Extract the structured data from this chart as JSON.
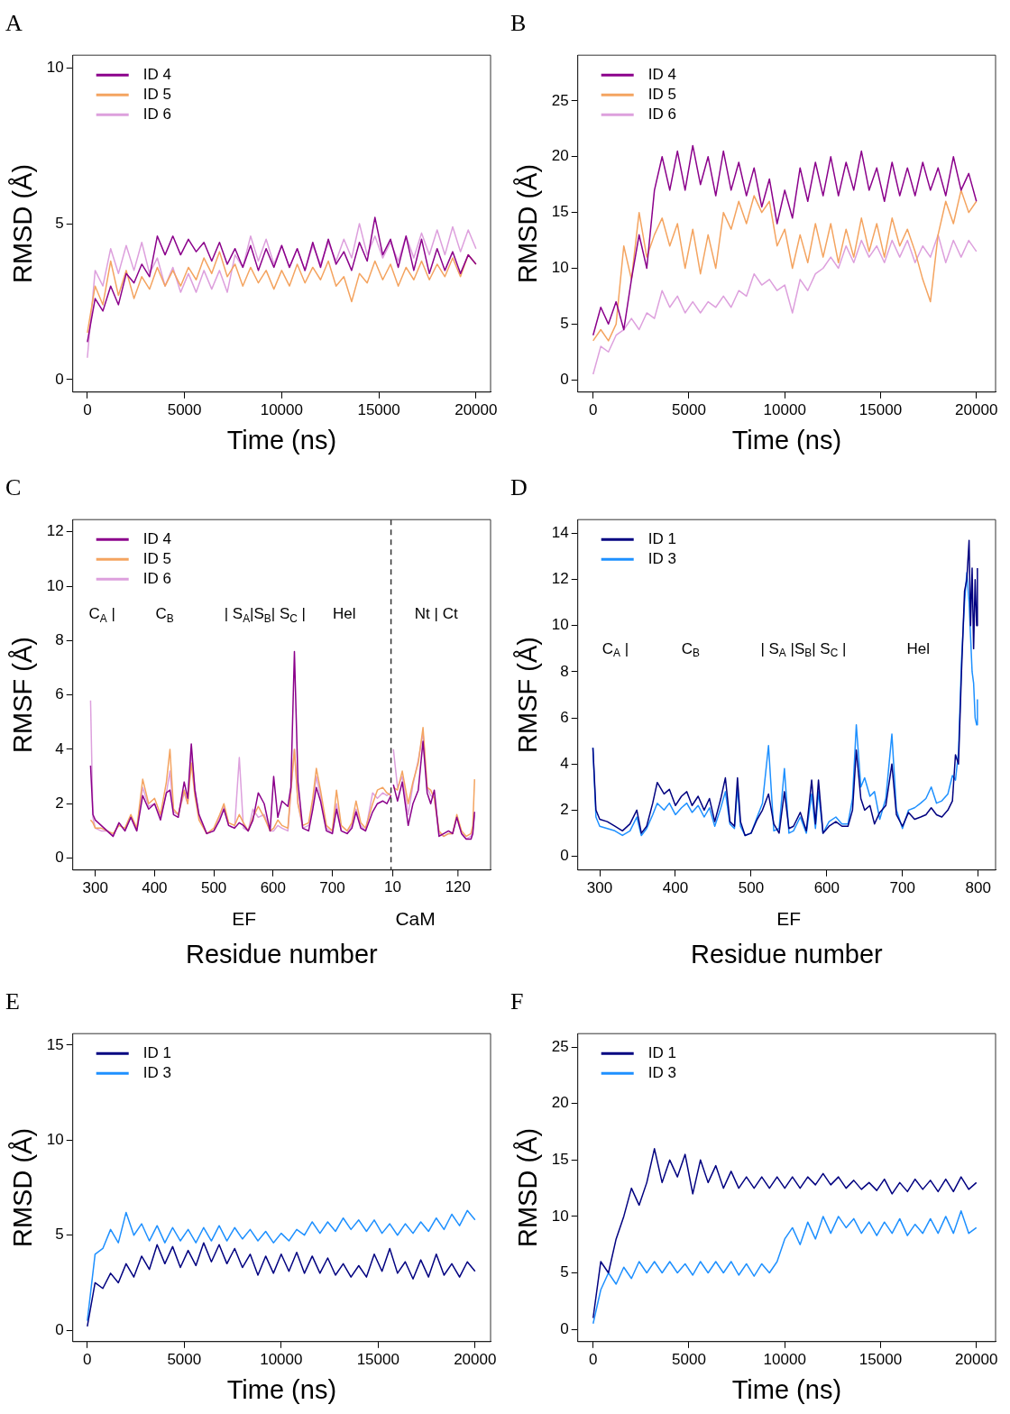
{
  "chart_data": [
    {
      "type": "line",
      "title": "A",
      "ylabel": "RMSD (Å)",
      "xlabel": "Time (ns)",
      "legend": "top left",
      "grid": false,
      "marker": "none",
      "line_style": "solid",
      "xlim": [
        -750,
        20750
      ],
      "xticks": [
        0,
        5000,
        10000,
        15000,
        20000
      ],
      "ylim": [
        -0.4,
        10.4
      ],
      "yticks": [
        0,
        5,
        10
      ],
      "x": [
        0,
        400,
        800,
        1200,
        1600,
        2000,
        2400,
        2800,
        3200,
        3600,
        4000,
        4400,
        4800,
        5200,
        5600,
        6000,
        6400,
        6800,
        7200,
        7600,
        8000,
        8400,
        8800,
        9200,
        9600,
        10000,
        10400,
        10800,
        11200,
        11600,
        12000,
        12400,
        12800,
        13200,
        13600,
        14000,
        14400,
        14800,
        15200,
        15600,
        16000,
        16400,
        16800,
        17200,
        17600,
        18000,
        18400,
        18800,
        19200,
        19600,
        20000
      ],
      "series": [
        {
          "name": "ID 4",
          "color": "#8b008b",
          "values": [
            1.2,
            2.6,
            2.2,
            3.0,
            2.4,
            3.4,
            3.1,
            3.7,
            3.3,
            4.6,
            4.0,
            4.6,
            4.0,
            4.5,
            4.1,
            4.4,
            3.8,
            4.4,
            3.7,
            4.2,
            3.6,
            4.3,
            3.5,
            4.2,
            3.6,
            4.3,
            3.6,
            4.2,
            3.5,
            4.4,
            3.6,
            4.5,
            3.7,
            4.1,
            3.5,
            4.4,
            3.8,
            5.2,
            4.0,
            4.5,
            3.6,
            4.6,
            3.5,
            4.5,
            3.4,
            4.2,
            3.5,
            4.1,
            3.4,
            4.0,
            3.7
          ]
        },
        {
          "name": "ID 5",
          "color": "#f4a460",
          "values": [
            1.5,
            3.0,
            2.4,
            3.8,
            2.7,
            3.5,
            2.6,
            3.3,
            2.9,
            3.6,
            3.0,
            3.5,
            3.0,
            3.6,
            3.2,
            3.9,
            3.4,
            4.1,
            3.3,
            3.7,
            3.0,
            3.6,
            3.1,
            3.5,
            2.9,
            3.5,
            3.0,
            3.7,
            3.1,
            3.6,
            3.2,
            3.8,
            3.0,
            3.3,
            2.5,
            3.4,
            3.1,
            3.8,
            3.2,
            3.7,
            3.0,
            3.6,
            3.2,
            3.8,
            3.2,
            3.7,
            3.3,
            3.9,
            3.3,
            4.0,
            3.7
          ]
        },
        {
          "name": "ID 6",
          "color": "#dda0dd",
          "values": [
            0.7,
            3.5,
            3.0,
            4.2,
            3.4,
            4.3,
            3.5,
            4.4,
            3.4,
            3.9,
            3.0,
            3.6,
            2.8,
            3.4,
            2.8,
            3.5,
            2.9,
            3.5,
            2.8,
            4.0,
            3.6,
            4.6,
            3.8,
            4.5,
            3.7,
            4.3,
            3.6,
            4.2,
            3.5,
            4.3,
            3.7,
            4.4,
            3.8,
            4.5,
            3.9,
            5.0,
            4.0,
            4.6,
            3.9,
            4.4,
            3.8,
            4.6,
            3.9,
            4.7,
            4.0,
            4.8,
            4.0,
            4.9,
            4.1,
            4.8,
            4.2
          ]
        }
      ]
    },
    {
      "type": "line",
      "title": "B",
      "ylabel": "RMSD (Å)",
      "xlabel": "Time (ns)",
      "legend": "top left",
      "grid": false,
      "marker": "none",
      "line_style": "solid",
      "xlim": [
        -800,
        21000
      ],
      "xticks": [
        0,
        5000,
        10000,
        15000,
        20000
      ],
      "ylim": [
        -1.1,
        29.1
      ],
      "yticks": [
        0,
        5,
        10,
        15,
        20,
        25
      ],
      "x": [
        0,
        400,
        800,
        1200,
        1600,
        2000,
        2400,
        2800,
        3200,
        3600,
        4000,
        4400,
        4800,
        5200,
        5600,
        6000,
        6400,
        6800,
        7200,
        7600,
        8000,
        8400,
        8800,
        9200,
        9600,
        10000,
        10400,
        10800,
        11200,
        11600,
        12000,
        12400,
        12800,
        13200,
        13600,
        14000,
        14400,
        14800,
        15200,
        15600,
        16000,
        16400,
        16800,
        17200,
        17600,
        18000,
        18400,
        18800,
        19200,
        19600,
        20000
      ],
      "series": [
        {
          "name": "ID 4",
          "color": "#8b008b",
          "values": [
            4,
            6.5,
            5,
            7,
            4.5,
            9,
            13,
            10,
            17,
            20,
            17,
            20.5,
            17,
            21,
            17.5,
            20,
            16.5,
            20.5,
            17,
            19.5,
            16.5,
            19,
            15.5,
            18,
            14,
            17,
            14.5,
            19,
            16,
            19.5,
            16.5,
            20,
            16.5,
            19.5,
            17,
            20.5,
            17,
            19,
            16,
            19.5,
            16.5,
            19,
            16.5,
            19.5,
            17,
            19,
            16.5,
            20,
            17,
            18.5,
            16
          ]
        },
        {
          "name": "ID 5",
          "color": "#f4a460",
          "values": [
            3.5,
            4.5,
            3.5,
            5,
            12,
            9,
            15,
            11,
            13,
            14.5,
            12,
            14,
            10,
            13.5,
            9.5,
            13,
            10,
            15,
            13.5,
            16,
            14,
            16.5,
            15,
            16,
            12,
            13.5,
            10,
            13,
            10.5,
            14,
            11,
            14,
            10.5,
            13.5,
            11,
            14.5,
            11.5,
            14,
            11,
            14.5,
            12,
            13.5,
            11.5,
            9,
            7,
            13,
            16,
            14,
            17,
            15,
            16
          ]
        },
        {
          "name": "ID 6",
          "color": "#dda0dd",
          "values": [
            0.5,
            3,
            2.5,
            4,
            4.5,
            5.5,
            4.5,
            6,
            5.5,
            8,
            6.5,
            7.5,
            6,
            7,
            6,
            7,
            6.5,
            7.5,
            6.5,
            8,
            7.5,
            9.5,
            8.5,
            9,
            8,
            8.5,
            6,
            9,
            8,
            9.5,
            10,
            11,
            10,
            12,
            10.5,
            12.5,
            11,
            12,
            10.5,
            12.5,
            11,
            12.5,
            10.5,
            12,
            11,
            13,
            10.5,
            12.5,
            11,
            12.5,
            11.5
          ]
        }
      ]
    },
    {
      "type": "line",
      "title": "C",
      "ylabel": "RMSF (Å)",
      "xlabel": "Residue number",
      "legend": "top left",
      "grid": false,
      "marker": "none",
      "line_style": "solid",
      "xlim": [
        262,
        967
      ],
      "xticks": [
        300,
        400,
        500,
        600,
        700
      ],
      "x2lim": [
        -530,
        175
      ],
      "x2ticks": [
        10,
        120
      ],
      "ylim": [
        -0.44,
        12.45
      ],
      "yticks": [
        0,
        2,
        4,
        6,
        8,
        10,
        12
      ],
      "ref_lines": [
        {
          "axis": "x",
          "value": 799,
          "color": "#333333",
          "line_style": "dashed"
        }
      ],
      "annotations": [
        "C$_{A}$ |",
        "C$_{B}$",
        "| S$_{A}$|S$_{B}$| S$_{C}$ |",
        "Hel",
        "Nt | Ct",
        "EF",
        "CaM"
      ],
      "x": [
        292,
        296,
        300,
        310,
        320,
        330,
        340,
        350,
        360,
        370,
        380,
        390,
        400,
        410,
        420,
        426,
        432,
        440,
        450,
        456,
        462,
        468,
        475,
        488,
        500,
        510,
        517,
        525,
        535,
        543,
        550,
        558,
        566,
        575,
        585,
        595,
        601,
        608,
        615,
        625,
        630,
        636,
        642,
        650,
        660,
        667,
        673,
        680,
        690,
        700,
        707,
        715,
        725,
        733,
        740,
        748,
        756,
        768,
        776,
        785,
        792,
        799
      ],
      "series": [
        {
          "name": "ID 4",
          "color": "#8b008b",
          "values": [
            3.4,
            1.6,
            1.4,
            1.2,
            1.0,
            0.8,
            1.3,
            1.0,
            1.5,
            1.0,
            2.3,
            1.8,
            2.0,
            1.4,
            2.4,
            2.5,
            1.6,
            1.5,
            2.8,
            2.2,
            4.2,
            2.5,
            1.6,
            0.9,
            1.0,
            1.4,
            1.8,
            1.2,
            1.1,
            1.3,
            1.2,
            1.0,
            1.4,
            2.4,
            2.0,
            1.0,
            3.0,
            1.5,
            2.1,
            1.9,
            2.6,
            7.6,
            2.8,
            1.1,
            1.0,
            1.8,
            2.6,
            2.1,
            1.0,
            0.9,
            1.8,
            1.0,
            0.9,
            1.1,
            1.7,
            1.1,
            1.0,
            1.7,
            2.0,
            2.1,
            2.0,
            2.3
          ]
        },
        {
          "name": "ID 5",
          "color": "#f4a460",
          "values": [
            1.4,
            1.3,
            1.1,
            1.1,
            1.0,
            0.9,
            1.2,
            1.1,
            1.6,
            1.1,
            2.9,
            2.0,
            2.2,
            1.6,
            2.8,
            4.0,
            1.8,
            1.6,
            2.5,
            2.0,
            3.5,
            2.3,
            1.4,
            0.9,
            1.1,
            1.6,
            2.0,
            1.3,
            1.2,
            1.6,
            1.3,
            1.0,
            1.5,
            1.9,
            1.5,
            1.0,
            1.1,
            1.4,
            1.2,
            1.1,
            2.5,
            4.0,
            2.0,
            1.2,
            1.3,
            2.2,
            3.3,
            2.5,
            1.2,
            1.0,
            2.5,
            1.2,
            1.0,
            1.3,
            2.1,
            1.3,
            1.1,
            2.0,
            2.5,
            2.6,
            2.4,
            2.3
          ]
        },
        {
          "name": "ID 6",
          "color": "#dda0dd",
          "values": [
            5.8,
            1.5,
            1.1,
            1.0,
            1.0,
            0.8,
            1.3,
            1.0,
            1.5,
            1.0,
            2.6,
            1.9,
            2.0,
            1.5,
            2.4,
            3.2,
            1.7,
            1.6,
            2.4,
            2.0,
            3.9,
            2.6,
            1.5,
            0.9,
            1.0,
            1.5,
            1.9,
            1.2,
            1.1,
            3.7,
            1.1,
            1.0,
            1.8,
            1.5,
            1.6,
            1.0,
            1.0,
            1.2,
            1.1,
            1.0,
            2.4,
            4.0,
            2.0,
            1.1,
            1.2,
            2.0,
            3.0,
            2.3,
            1.1,
            0.9,
            2.0,
            1.0,
            0.9,
            1.2,
            1.8,
            1.2,
            1.0,
            2.4,
            2.2,
            2.4,
            2.3,
            2.4
          ]
        },
        {
          "axis": "x2",
          "color": "#8b008b",
          "x": [
            11,
            18,
            26,
            36,
            44,
            53,
            61,
            68,
            74,
            80,
            88,
            96,
            104,
            111,
            118,
            126,
            134,
            142,
            145,
            148
          ],
          "values": [
            2.7,
            2.1,
            2.8,
            1.2,
            2.0,
            2.5,
            4.3,
            2.4,
            2.0,
            2.5,
            0.8,
            0.9,
            1.0,
            0.9,
            1.5,
            0.9,
            0.7,
            0.7,
            0.9,
            1.7
          ]
        },
        {
          "axis": "x2",
          "color": "#f4a460",
          "x": [
            11,
            18,
            26,
            36,
            44,
            53,
            61,
            68,
            74,
            80,
            88,
            96,
            104,
            111,
            118,
            126,
            134,
            142,
            145,
            148
          ],
          "values": [
            2.6,
            2.5,
            3.2,
            2.0,
            2.8,
            3.5,
            4.8,
            2.6,
            2.5,
            2.2,
            1.0,
            0.8,
            0.9,
            0.9,
            1.6,
            1.0,
            0.8,
            0.9,
            1.2,
            2.9
          ]
        },
        {
          "axis": "x2",
          "color": "#dda0dd",
          "x": [
            11,
            18,
            26,
            36,
            44,
            53,
            61,
            68,
            74,
            80,
            88,
            96,
            104,
            111,
            118,
            126,
            134,
            142,
            145,
            148
          ],
          "values": [
            4.0,
            2.6,
            3.0,
            1.6,
            2.7,
            3.6,
            4.6,
            2.6,
            2.3,
            2.2,
            0.9,
            0.8,
            0.9,
            0.9,
            1.5,
            0.9,
            0.7,
            0.8,
            1.0,
            1.6
          ]
        }
      ]
    },
    {
      "type": "line",
      "title": "D",
      "ylabel": "RMSF (Å)",
      "xlabel": "Residue number",
      "legend": "top left",
      "grid": false,
      "marker": "none",
      "line_style": "solid",
      "xlim": [
        271,
        823
      ],
      "xticks": [
        300,
        400,
        500,
        600,
        700,
        800
      ],
      "ylim": [
        -0.6,
        14.6
      ],
      "yticks": [
        0,
        2,
        4,
        6,
        8,
        10,
        12,
        14
      ],
      "annotations": [
        "C$_{A}$ |",
        "C$_{B}$",
        "| S$_{A}$ |S$_{B}$| S$_{C}$ |",
        "Hel",
        "EF"
      ],
      "x": [
        291,
        295,
        300,
        310,
        320,
        330,
        340,
        349,
        355,
        362,
        370,
        376,
        385,
        392,
        400,
        408,
        415,
        422,
        430,
        438,
        445,
        452,
        460,
        466,
        472,
        478,
        482,
        486,
        492,
        500,
        508,
        515,
        523,
        530,
        537,
        544,
        550,
        556,
        565,
        573,
        580,
        585,
        589,
        595,
        603,
        612,
        620,
        628,
        634,
        639,
        645,
        650,
        657,
        663,
        670,
        678,
        686,
        692,
        700,
        708,
        716,
        724,
        731,
        738,
        745,
        752,
        760,
        766,
        770,
        774,
        778,
        782,
        785,
        788,
        790,
        792,
        794,
        796,
        798,
        799
      ],
      "series": [
        {
          "name": "ID 1",
          "color": "#000080",
          "values": [
            4.7,
            2.0,
            1.6,
            1.5,
            1.3,
            1.1,
            1.4,
            2.0,
            1.0,
            1.3,
            2.3,
            3.2,
            2.7,
            2.9,
            2.2,
            2.6,
            2.8,
            2.2,
            2.6,
            2.0,
            2.5,
            1.5,
            2.5,
            3.4,
            1.5,
            1.3,
            3.4,
            1.5,
            0.9,
            1.0,
            1.6,
            2.0,
            2.7,
            1.4,
            1.0,
            2.8,
            1.2,
            1.3,
            1.9,
            1.1,
            3.3,
            1.4,
            3.3,
            1.0,
            1.3,
            1.5,
            1.3,
            1.3,
            2.0,
            4.6,
            2.5,
            2.0,
            2.2,
            1.4,
            1.9,
            2.2,
            4.0,
            1.8,
            1.3,
            1.9,
            1.6,
            1.7,
            1.8,
            2.1,
            1.8,
            1.7,
            2.0,
            2.4,
            4.4,
            4.0,
            8.0,
            11.5,
            12.0,
            13.7,
            10.0,
            12.5,
            9.0,
            12.0,
            10.0,
            12.5
          ]
        },
        {
          "name": "ID 3",
          "color": "#1e90ff",
          "values": [
            4.7,
            1.7,
            1.3,
            1.2,
            1.1,
            0.9,
            1.1,
            1.7,
            0.9,
            1.2,
            1.8,
            2.3,
            2.0,
            2.3,
            1.8,
            2.1,
            2.3,
            1.9,
            2.2,
            1.7,
            2.1,
            1.3,
            2.1,
            2.8,
            1.4,
            1.2,
            3.0,
            1.3,
            0.9,
            1.0,
            1.7,
            2.3,
            4.8,
            1.1,
            1.2,
            3.8,
            1.0,
            1.1,
            1.7,
            1.0,
            2.7,
            1.2,
            2.8,
            1.0,
            1.5,
            1.7,
            1.4,
            1.4,
            2.5,
            5.7,
            3.0,
            3.4,
            2.6,
            2.8,
            1.6,
            2.5,
            5.3,
            2.0,
            1.2,
            2.0,
            2.1,
            2.3,
            2.5,
            3.0,
            2.3,
            2.4,
            2.7,
            3.5,
            3.3,
            4.5,
            8.5,
            11.0,
            12.3,
            11.0,
            9.5,
            8.0,
            7.5,
            6.0,
            5.7,
            6.8
          ]
        }
      ]
    },
    {
      "type": "line",
      "title": "E",
      "ylabel": "RMSD (Å)",
      "xlabel": "Time (ns)",
      "legend": "top left",
      "grid": false,
      "marker": "none",
      "line_style": "solid",
      "xlim": [
        -750,
        20800
      ],
      "xticks": [
        0,
        5000,
        10000,
        15000,
        20000
      ],
      "ylim": [
        -0.6,
        15.6
      ],
      "yticks": [
        0,
        5,
        10,
        15
      ],
      "x": [
        0,
        400,
        800,
        1200,
        1600,
        2000,
        2400,
        2800,
        3200,
        3600,
        4000,
        4400,
        4800,
        5200,
        5600,
        6000,
        6400,
        6800,
        7200,
        7600,
        8000,
        8400,
        8800,
        9200,
        9600,
        10000,
        10400,
        10800,
        11200,
        11600,
        12000,
        12400,
        12800,
        13200,
        13600,
        14000,
        14400,
        14800,
        15200,
        15600,
        16000,
        16400,
        16800,
        17200,
        17600,
        18000,
        18400,
        18800,
        19200,
        19600,
        20000
      ],
      "series": [
        {
          "name": "ID 1",
          "color": "#000080",
          "values": [
            0.2,
            2.5,
            2.2,
            3.0,
            2.5,
            3.5,
            2.8,
            3.9,
            3.2,
            4.5,
            3.5,
            4.4,
            3.3,
            4.2,
            3.4,
            4.6,
            3.6,
            4.5,
            3.5,
            4.3,
            3.3,
            4.0,
            2.9,
            3.9,
            3.0,
            4.0,
            3.1,
            4.1,
            3.0,
            3.9,
            3.0,
            3.8,
            2.9,
            3.5,
            2.8,
            3.4,
            2.8,
            4.0,
            3.1,
            4.3,
            3.0,
            3.6,
            2.7,
            3.7,
            2.8,
            4.0,
            2.9,
            3.5,
            2.8,
            3.6,
            3.1
          ]
        },
        {
          "name": "ID 3",
          "color": "#1e90ff",
          "values": [
            0.5,
            4.0,
            4.3,
            5.3,
            4.6,
            6.2,
            5.0,
            5.6,
            4.7,
            5.5,
            4.6,
            5.4,
            4.7,
            5.3,
            4.6,
            5.4,
            4.7,
            5.5,
            4.7,
            5.4,
            4.8,
            5.3,
            4.7,
            5.2,
            4.6,
            5.1,
            4.7,
            5.3,
            5.0,
            5.7,
            5.1,
            5.7,
            5.2,
            5.9,
            5.3,
            5.8,
            5.2,
            5.8,
            5.1,
            5.6,
            5.0,
            5.6,
            5.1,
            5.7,
            5.2,
            5.9,
            5.3,
            6.1,
            5.5,
            6.3,
            5.8
          ]
        }
      ]
    },
    {
      "type": "line",
      "title": "F",
      "ylabel": "RMSD (Å)",
      "xlabel": "Time (ns)",
      "legend": "top left",
      "grid": false,
      "marker": "none",
      "line_style": "solid",
      "xlim": [
        -800,
        21000
      ],
      "xticks": [
        0,
        5000,
        10000,
        15000,
        20000
      ],
      "ylim": [
        -1.1,
        26.2
      ],
      "yticks": [
        0,
        5,
        10,
        15,
        20,
        25
      ],
      "x": [
        0,
        400,
        800,
        1200,
        1600,
        2000,
        2400,
        2800,
        3200,
        3600,
        4000,
        4400,
        4800,
        5200,
        5600,
        6000,
        6400,
        6800,
        7200,
        7600,
        8000,
        8400,
        8800,
        9200,
        9600,
        10000,
        10400,
        10800,
        11200,
        11600,
        12000,
        12400,
        12800,
        13200,
        13600,
        14000,
        14400,
        14800,
        15200,
        15600,
        16000,
        16400,
        16800,
        17200,
        17600,
        18000,
        18400,
        18800,
        19200,
        19600,
        20000
      ],
      "series": [
        {
          "name": "ID 1",
          "color": "#000080",
          "values": [
            1,
            6,
            5,
            8,
            10,
            12.5,
            11,
            13,
            16,
            13,
            15,
            13.5,
            15.5,
            12,
            15,
            13,
            14.5,
            12.5,
            14,
            12.5,
            13.5,
            12.5,
            13.5,
            12.5,
            13.5,
            12.5,
            13.5,
            12.5,
            13.5,
            12.8,
            13.8,
            12.8,
            13.5,
            12.5,
            13.2,
            12.4,
            13.0,
            12.3,
            13.3,
            12.0,
            13.0,
            12.2,
            13.3,
            12.4,
            13.2,
            12.2,
            13.3,
            12.2,
            13.5,
            12.4,
            13.0
          ]
        },
        {
          "name": "ID 3",
          "color": "#1e90ff",
          "values": [
            0.5,
            3.5,
            5,
            4,
            5.5,
            4.5,
            6,
            5,
            6,
            5,
            6,
            5,
            5.8,
            4.8,
            6,
            5,
            6,
            5,
            6,
            4.8,
            5.8,
            4.7,
            5.8,
            5,
            6,
            8,
            9,
            7.5,
            9.5,
            8,
            10,
            8.5,
            10,
            9,
            9.8,
            8.5,
            9.5,
            8.3,
            9.5,
            8.5,
            9.8,
            8.3,
            9.3,
            8.5,
            9.8,
            8.5,
            10,
            8.5,
            10.5,
            8.5,
            9
          ]
        }
      ]
    }
  ]
}
